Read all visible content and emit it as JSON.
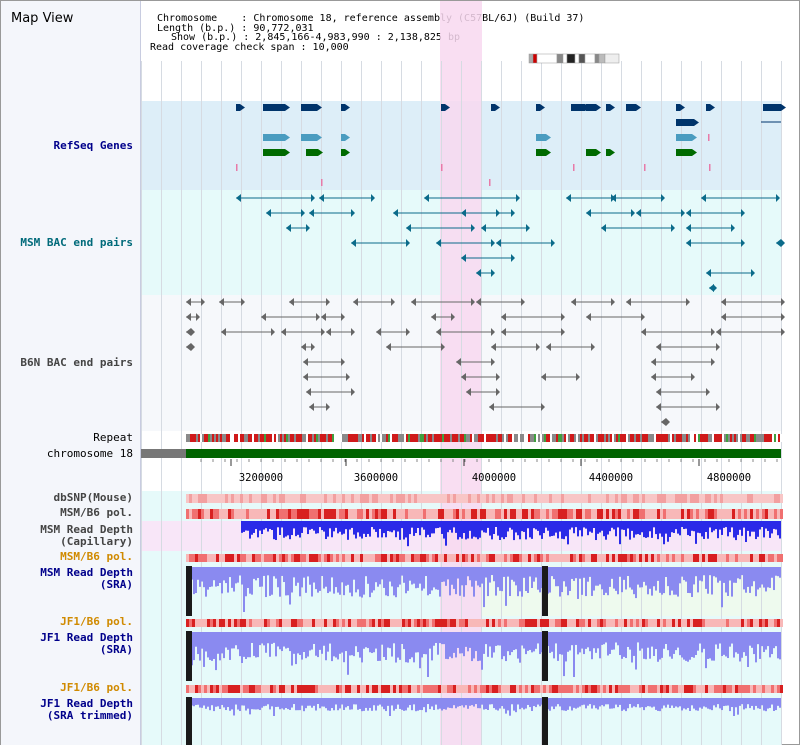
{
  "header": {
    "title": "Map View",
    "chromosome_line": "Chromosome    : Chromosome 18, reference assembly (C57BL/6J) (Build 37)",
    "length_line": "Length (b.p.) : 90,772,031",
    "show_line": "Show (b.p.) : 2,845,166-4,983,990 : 2,138,825 bp",
    "coverage_line": "Read coverage check span : 10,000"
  },
  "tracks": {
    "refseq": "RefSeq Genes",
    "msm_bac": "MSM BAC end pairs",
    "b6n_bac": "B6N BAC end pairs",
    "repeat": "Repeat",
    "chromosome": "chromosome 18",
    "dbsnp": "dbSNP(Mouse)",
    "msm_b6_pol_1": "MSM/B6 pol.",
    "msm_depth_cap": "MSM Read Depth\n(Capillary)",
    "msm_b6_pol_2": "MSM/B6 pol.",
    "msm_depth_sra": "MSM Read Depth\n(SRA)",
    "jf1_b6_pol_1": "JF1/B6 pol.",
    "jf1_depth_sra": "JF1 Read Depth\n(SRA)",
    "jf1_b6_pol_2": "JF1/B6 pol.",
    "jf1_depth_trim": "JF1 Read Depth\n(SRA trimmed)"
  },
  "axis": {
    "ticks": [
      "3200000",
      "3600000",
      "4000000",
      "4400000",
      "4800000"
    ]
  },
  "colors": {
    "refseq_bg": "#ddeef8",
    "bac_bg": "#e6fafa",
    "highlight": "#f8d8f0",
    "chromosome": "#006400",
    "gene_dark": "#00346b",
    "gene_mid": "#4a9cc0",
    "gene_green": "#006a00",
    "depth_blue": "#2a2ae8",
    "depth_light": "#8a8af0",
    "snp_red": "#e83030"
  }
}
